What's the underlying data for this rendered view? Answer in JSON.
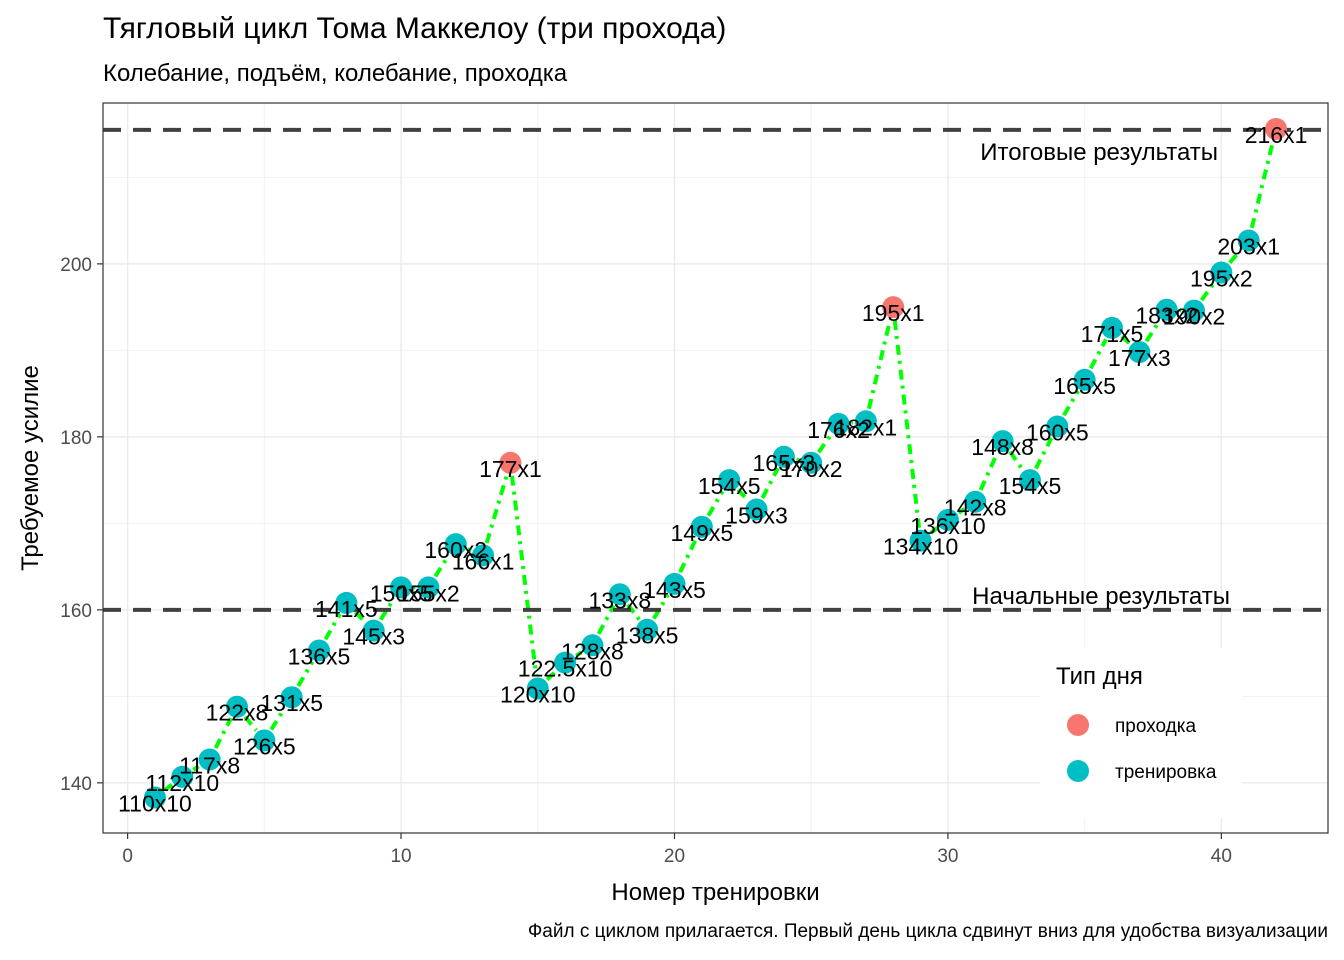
{
  "title": "Тягловый цикл Тома Маккелоу (три прохода)",
  "subtitle": "Колебание, подъём, колебание, проходка",
  "caption": "Файл с циклом прилагается. Первый день цикла сдвинут вниз для удобства визуализации",
  "chart_data": {
    "type": "scatter",
    "xlabel": "Номер тренировки",
    "ylabel": "Требуемое усилие",
    "xlim": [
      -0.9,
      43.9
    ],
    "ylim": [
      134.2,
      218.6
    ],
    "x_ticks": [
      0,
      10,
      20,
      30,
      40
    ],
    "y_ticks": [
      140,
      160,
      180,
      200
    ],
    "grid": true,
    "legend": {
      "title": "Тип дня",
      "placement": "right",
      "entries": [
        {
          "label": "проходка",
          "color": "#F8766D"
        },
        {
          "label": "тренировка",
          "color": "#00BFC4"
        }
      ]
    },
    "reference_lines": [
      {
        "y": 160,
        "label": "Начальные результаты"
      },
      {
        "y": 215.5,
        "label": "Итоговые результаты"
      }
    ],
    "connector_color": "#00FF00",
    "points": [
      {
        "x": 1,
        "y": 138.3,
        "label": "110x10",
        "type": "тренировка"
      },
      {
        "x": 2,
        "y": 140.7,
        "label": "112x10",
        "type": "тренировка"
      },
      {
        "x": 3,
        "y": 142.7,
        "label": "117x8",
        "type": "тренировка"
      },
      {
        "x": 4,
        "y": 148.8,
        "label": "122x8",
        "type": "тренировка"
      },
      {
        "x": 5,
        "y": 144.9,
        "label": "126x5",
        "type": "тренировка"
      },
      {
        "x": 6,
        "y": 149.9,
        "label": "131x5",
        "type": "тренировка"
      },
      {
        "x": 7,
        "y": 155.3,
        "label": "136x5",
        "type": "тренировка"
      },
      {
        "x": 8,
        "y": 160.8,
        "label": "141x5",
        "type": "тренировка"
      },
      {
        "x": 9,
        "y": 157.6,
        "label": "145x3",
        "type": "тренировка"
      },
      {
        "x": 10,
        "y": 162.6,
        "label": "150x5",
        "type": "тренировка"
      },
      {
        "x": 11,
        "y": 162.6,
        "label": "155x2",
        "type": "тренировка"
      },
      {
        "x": 12,
        "y": 167.6,
        "label": "160x2",
        "type": "тренировка"
      },
      {
        "x": 13,
        "y": 166.3,
        "label": "166x1",
        "type": "тренировка"
      },
      {
        "x": 14,
        "y": 177.0,
        "label": "177x1",
        "type": "проходка"
      },
      {
        "x": 15,
        "y": 150.9,
        "label": "120x10",
        "type": "тренировка"
      },
      {
        "x": 16,
        "y": 153.9,
        "label": "122.5x10",
        "type": "тренировка"
      },
      {
        "x": 17,
        "y": 155.9,
        "label": "128x8",
        "type": "тренировка"
      },
      {
        "x": 18,
        "y": 161.8,
        "label": "133x8",
        "type": "тренировка"
      },
      {
        "x": 19,
        "y": 157.7,
        "label": "138x5",
        "type": "тренировка"
      },
      {
        "x": 20,
        "y": 163.0,
        "label": "143x5",
        "type": "тренировка"
      },
      {
        "x": 21,
        "y": 169.6,
        "label": "149x5",
        "type": "тренировка"
      },
      {
        "x": 22,
        "y": 175.0,
        "label": "154x5",
        "type": "тренировка"
      },
      {
        "x": 23,
        "y": 171.6,
        "label": "159x3",
        "type": "тренировка"
      },
      {
        "x": 24,
        "y": 177.7,
        "label": "165x3",
        "type": "тренировка"
      },
      {
        "x": 25,
        "y": 177.0,
        "label": "170x2",
        "type": "тренировка"
      },
      {
        "x": 26,
        "y": 181.5,
        "label": "176x2",
        "type": "тренировка"
      },
      {
        "x": 27,
        "y": 181.8,
        "label": "182x1",
        "type": "тренировка"
      },
      {
        "x": 28,
        "y": 195.0,
        "label": "195x1",
        "type": "проходка"
      },
      {
        "x": 29,
        "y": 168.0,
        "label": "134x10",
        "type": "тренировка"
      },
      {
        "x": 30,
        "y": 170.4,
        "label": "136x10",
        "type": "тренировка"
      },
      {
        "x": 31,
        "y": 172.5,
        "label": "142x8",
        "type": "тренировка"
      },
      {
        "x": 32,
        "y": 179.5,
        "label": "148x8",
        "type": "тренировка"
      },
      {
        "x": 33,
        "y": 175.0,
        "label": "154x5",
        "type": "тренировка"
      },
      {
        "x": 34,
        "y": 181.2,
        "label": "160x5",
        "type": "тренировка"
      },
      {
        "x": 35,
        "y": 186.6,
        "label": "165x5",
        "type": "тренировка"
      },
      {
        "x": 36,
        "y": 192.6,
        "label": "171x5",
        "type": "тренировка"
      },
      {
        "x": 37,
        "y": 189.8,
        "label": "177x3",
        "type": "тренировка"
      },
      {
        "x": 38,
        "y": 194.7,
        "label": "183x2",
        "type": "тренировка"
      },
      {
        "x": 39,
        "y": 194.6,
        "label": "190x2",
        "type": "тренировка"
      },
      {
        "x": 40,
        "y": 199.0,
        "label": "195x2",
        "type": "тренировка"
      },
      {
        "x": 41,
        "y": 202.7,
        "label": "203x1",
        "type": "тренировка"
      },
      {
        "x": 42,
        "y": 215.6,
        "label": "216x1",
        "type": "проходка"
      }
    ]
  }
}
